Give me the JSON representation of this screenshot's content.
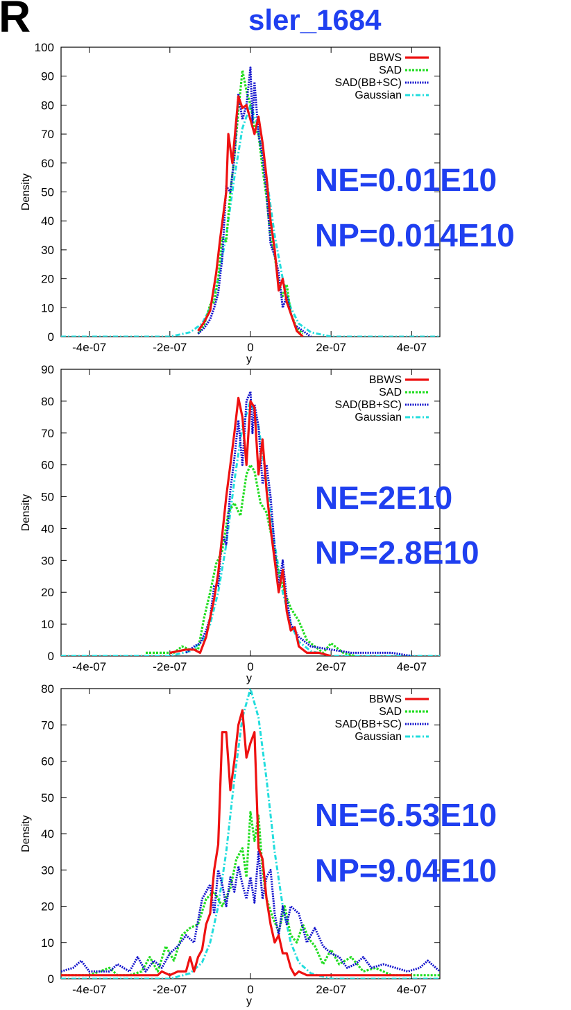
{
  "panel_letter": "R",
  "title": "sler_1684",
  "colors": {
    "BBWS": "#ee1111",
    "SAD": "#22dd22",
    "SAD(BB+SC)": "#1111cc",
    "Gaussian": "#22dddd",
    "annotation": "#1f3ff0"
  },
  "chart_data": [
    {
      "type": "line",
      "title": "",
      "xlabel": "y",
      "ylabel": "Density",
      "xlim": [
        -4.7e-07,
        4.7e-07
      ],
      "ylim": [
        0,
        100
      ],
      "xticks": [
        -4e-07,
        -2e-07,
        0,
        2e-07,
        4e-07
      ],
      "xtick_labels": [
        "-4e-07",
        "-2e-07",
        "0",
        "2e-07",
        "4e-07"
      ],
      "yticks": [
        0,
        10,
        20,
        30,
        40,
        50,
        60,
        70,
        80,
        90,
        100
      ],
      "legend": [
        "BBWS",
        "SAD",
        "SAD(BB+SC)",
        "Gaussian"
      ],
      "legend_position": "top-right",
      "annotations": [
        "NE=0.01E10",
        "NP=0.014E10"
      ],
      "series": [
        {
          "name": "BBWS",
          "x": [
            -1.3e-07,
            -1.15e-07,
            -1e-07,
            -8.5e-08,
            -7.5e-08,
            -6e-08,
            -5.5e-08,
            -4.5e-08,
            -3e-08,
            -2e-08,
            -1e-08,
            0,
            1e-08,
            2e-08,
            3e-08,
            4e-08,
            5e-08,
            6e-08,
            7e-08,
            8e-08,
            9e-08,
            1e-07,
            1.15e-07,
            1.3e-07
          ],
          "y": [
            2,
            5,
            9,
            22,
            34,
            50,
            70,
            60,
            83,
            79,
            80,
            75,
            70,
            76,
            67,
            55,
            40,
            30,
            16,
            20,
            12,
            8,
            2,
            0
          ]
        },
        {
          "name": "SAD",
          "x": [
            -1.3e-07,
            -1.15e-07,
            -1e-07,
            -9e-08,
            -8e-08,
            -7e-08,
            -6e-08,
            -5e-08,
            -4e-08,
            -3e-08,
            -2e-08,
            -1e-08,
            0,
            1e-08,
            2e-08,
            3e-08,
            4e-08,
            5e-08,
            6e-08,
            7e-08,
            8e-08,
            9e-08,
            1e-07,
            1.15e-07,
            1.3e-07
          ],
          "y": [
            1,
            4,
            11,
            12,
            20,
            34,
            33,
            50,
            62,
            78,
            92,
            85,
            80,
            72,
            70,
            58,
            48,
            34,
            28,
            18,
            14,
            18,
            8,
            3,
            1
          ]
        },
        {
          "name": "SAD(BB+SC)",
          "x": [
            -1.3e-07,
            -1.15e-07,
            -1e-07,
            -9e-08,
            -8e-08,
            -7e-08,
            -6e-08,
            -5e-08,
            -4e-08,
            -3e-08,
            -2e-08,
            -1e-08,
            0,
            5e-09,
            1e-08,
            2e-08,
            3e-08,
            4e-08,
            5e-08,
            6e-08,
            7e-08,
            8e-08,
            9e-08,
            1e-07,
            1.1e-07,
            1.3e-07,
            1.5e-07
          ],
          "y": [
            1,
            3,
            6,
            10,
            15,
            27,
            52,
            50,
            62,
            84,
            75,
            80,
            93,
            74,
            88,
            70,
            62,
            50,
            32,
            28,
            22,
            10,
            14,
            8,
            4,
            2,
            0
          ]
        },
        {
          "name": "Gaussian",
          "x": [
            -4.7e-07,
            -2e-07,
            -1.5e-07,
            -1.2e-07,
            -1e-07,
            -8e-08,
            -6e-08,
            -4e-08,
            -2e-08,
            0,
            2e-08,
            4e-08,
            6e-08,
            8e-08,
            1e-07,
            1.2e-07,
            1.5e-07,
            2e-07,
            4.7e-07
          ],
          "y": [
            0,
            0,
            1.5,
            4.5,
            10,
            20,
            35,
            55,
            72,
            80,
            72,
            55,
            35,
            20,
            10,
            4.5,
            1.5,
            0,
            0
          ]
        }
      ]
    },
    {
      "type": "line",
      "title": "",
      "xlabel": "y",
      "ylabel": "Density",
      "xlim": [
        -4.7e-07,
        4.7e-07
      ],
      "ylim": [
        0,
        90
      ],
      "xticks": [
        -4e-07,
        -2e-07,
        0,
        2e-07,
        4e-07
      ],
      "xtick_labels": [
        "-4e-07",
        "-2e-07",
        "0",
        "2e-07",
        "4e-07"
      ],
      "yticks": [
        0,
        10,
        20,
        30,
        40,
        50,
        60,
        70,
        80,
        90
      ],
      "legend": [
        "BBWS",
        "SAD",
        "SAD(BB+SC)",
        "Gaussian"
      ],
      "legend_position": "top-right",
      "annotations": [
        "NE=2E10",
        "NP=2.8E10"
      ],
      "series": [
        {
          "name": "BBWS",
          "x": [
            -2e-07,
            -1.6e-07,
            -1.4e-07,
            -1.25e-07,
            -1.1e-07,
            -1e-07,
            -9e-08,
            -8e-08,
            -7e-08,
            -6e-08,
            -5e-08,
            -4e-08,
            -3e-08,
            -2e-08,
            -1e-08,
            0,
            1e-08,
            2e-08,
            3e-08,
            4e-08,
            5e-08,
            6e-08,
            7e-08,
            8e-08,
            9e-08,
            1e-07,
            1.1e-07,
            1.2e-07,
            1.4e-07,
            1.7e-07,
            2e-07
          ],
          "y": [
            1,
            2,
            2,
            1,
            6,
            12,
            18,
            26,
            38,
            50,
            60,
            70,
            81,
            75,
            60,
            80,
            78,
            57,
            68,
            52,
            40,
            30,
            20,
            27,
            14,
            8,
            9,
            3,
            1,
            1,
            0
          ]
        },
        {
          "name": "SAD",
          "x": [
            -2.6e-07,
            -2.2e-07,
            -1.9e-07,
            -1.7e-07,
            -1.5e-07,
            -1.3e-07,
            -1.15e-07,
            -1e-07,
            -8.5e-08,
            -7e-08,
            -5.5e-08,
            -4e-08,
            -2.5e-08,
            -1e-08,
            0,
            1e-08,
            2.5e-08,
            4e-08,
            5.5e-08,
            7e-08,
            8.5e-08,
            1e-07,
            1.2e-07,
            1.4e-07,
            1.6e-07,
            1.8e-07,
            2e-07,
            2.3e-07,
            2.6e-07
          ],
          "y": [
            1,
            1,
            1,
            3,
            2,
            2,
            12,
            20,
            29,
            33,
            45,
            48,
            44,
            57,
            60,
            58,
            48,
            45,
            36,
            26,
            20,
            15,
            11,
            5,
            3,
            1,
            4,
            1,
            0
          ]
        },
        {
          "name": "SAD(BB+SC)",
          "x": [
            -1.6e-07,
            -1.4e-07,
            -1.25e-07,
            -1.1e-07,
            -1e-07,
            -9e-08,
            -8e-08,
            -7e-08,
            -6e-08,
            -5e-08,
            -4e-08,
            -3e-08,
            -2e-08,
            -1e-08,
            0,
            5e-09,
            1e-08,
            2e-08,
            3e-08,
            4e-08,
            5e-08,
            6e-08,
            7e-08,
            8e-08,
            9e-08,
            1e-07,
            1.2e-07,
            1.5e-07,
            2e-07,
            2.5e-07,
            3e-07,
            3.5e-07,
            4e-07
          ],
          "y": [
            1,
            3,
            4,
            8,
            12,
            22,
            22,
            38,
            35,
            52,
            62,
            74,
            60,
            80,
            83,
            70,
            79,
            72,
            54,
            60,
            50,
            34,
            22,
            30,
            18,
            10,
            6,
            3,
            2,
            1,
            1,
            1,
            0
          ]
        },
        {
          "name": "Gaussian",
          "x": [
            -4.7e-07,
            -2e-07,
            -1.5e-07,
            -1.2e-07,
            -1e-07,
            -8e-08,
            -6e-08,
            -4e-08,
            -2e-08,
            0,
            2e-08,
            4e-08,
            6e-08,
            8e-08,
            1e-07,
            1.2e-07,
            1.5e-07,
            2e-07,
            4.7e-07
          ],
          "y": [
            0,
            0,
            1.5,
            4.5,
            10,
            20,
            35,
            55,
            72,
            80,
            72,
            55,
            35,
            20,
            10,
            4.5,
            1.5,
            0,
            0
          ]
        }
      ]
    },
    {
      "type": "line",
      "title": "",
      "xlabel": "y",
      "ylabel": "Density",
      "xlim": [
        -4.7e-07,
        4.7e-07
      ],
      "ylim": [
        0,
        80
      ],
      "xticks": [
        -4e-07,
        -2e-07,
        0,
        2e-07,
        4e-07
      ],
      "xtick_labels": [
        "-4e-07",
        "-2e-07",
        "0",
        "2e-07",
        "4e-07"
      ],
      "yticks": [
        0,
        10,
        20,
        30,
        40,
        50,
        60,
        70,
        80
      ],
      "legend": [
        "BBWS",
        "SAD",
        "SAD(BB+SC)",
        "Gaussian"
      ],
      "legend_position": "top-right",
      "annotations": [
        "NE=6.53E10",
        "NP=9.04E10"
      ],
      "series": [
        {
          "name": "BBWS",
          "x": [
            -4.7e-07,
            -3e-07,
            -2.3e-07,
            -2.2e-07,
            -2e-07,
            -1.8e-07,
            -1.6e-07,
            -1.5e-07,
            -1.4e-07,
            -1.3e-07,
            -1.2e-07,
            -1.1e-07,
            -1e-07,
            -9e-08,
            -8e-08,
            -7e-08,
            -6e-08,
            -5e-08,
            -4e-08,
            -3e-08,
            -2e-08,
            -1e-08,
            0,
            1e-08,
            2e-08,
            3e-08,
            4e-08,
            5e-08,
            6e-08,
            7e-08,
            8e-08,
            9e-08,
            1e-07,
            1.1e-07,
            1.2e-07,
            1.4e-07,
            1.6e-07,
            2e-07,
            4e-07
          ],
          "y": [
            1,
            1,
            1,
            2,
            1,
            2,
            2,
            6,
            2,
            6,
            8,
            15,
            18,
            30,
            37,
            68,
            68,
            52,
            60,
            70,
            74,
            61,
            65,
            68,
            36,
            33,
            22,
            15,
            10,
            12,
            7,
            7,
            3,
            1,
            2,
            1,
            1,
            1,
            1
          ]
        },
        {
          "name": "SAD",
          "x": [
            -4.7e-07,
            -4e-07,
            -3.5e-07,
            -3.3e-07,
            -3e-07,
            -2.7e-07,
            -2.5e-07,
            -2.3e-07,
            -2.1e-07,
            -1.9e-07,
            -1.7e-07,
            -1.5e-07,
            -1.3e-07,
            -1.1e-07,
            -9e-08,
            -7e-08,
            -5e-08,
            -3.5e-08,
            -2e-08,
            -1e-08,
            0,
            1e-08,
            2e-08,
            3e-08,
            4e-08,
            5.5e-08,
            7e-08,
            8.5e-08,
            1e-07,
            1.15e-07,
            1.3e-07,
            1.45e-07,
            1.6e-07,
            1.8e-07,
            2e-07,
            2.2e-07,
            2.5e-07,
            2.8e-07,
            3.1e-07,
            3.5e-07,
            4e-07,
            4.7e-07
          ],
          "y": [
            1,
            1,
            3,
            1,
            1,
            2,
            6,
            2,
            9,
            5,
            12,
            14,
            15,
            22,
            24,
            20,
            25,
            33,
            36,
            28,
            46,
            38,
            45,
            30,
            22,
            17,
            13,
            20,
            12,
            10,
            15,
            11,
            9,
            4,
            8,
            4,
            6,
            2,
            3,
            1,
            1,
            1
          ]
        },
        {
          "name": "SAD(BB+SC)",
          "x": [
            -4.7e-07,
            -4.4e-07,
            -4.2e-07,
            -4e-07,
            -3.8e-07,
            -3.5e-07,
            -3.3e-07,
            -3e-07,
            -2.8e-07,
            -2.6e-07,
            -2.4e-07,
            -2.2e-07,
            -2e-07,
            -1.8e-07,
            -1.6e-07,
            -1.4e-07,
            -1.2e-07,
            -1e-07,
            -9e-08,
            -8e-08,
            -7e-08,
            -6e-08,
            -5e-08,
            -4e-08,
            -3e-08,
            -2e-08,
            -1e-08,
            0,
            1e-08,
            2e-08,
            3e-08,
            4e-08,
            5e-08,
            6e-08,
            7e-08,
            8e-08,
            9e-08,
            1e-07,
            1.2e-07,
            1.4e-07,
            1.6e-07,
            1.8e-07,
            2e-07,
            2.2e-07,
            2.4e-07,
            2.6e-07,
            2.8e-07,
            3e-07,
            3.3e-07,
            3.6e-07,
            3.9e-07,
            4.2e-07,
            4.4e-07,
            4.7e-07
          ],
          "y": [
            2,
            3,
            5,
            2,
            2,
            2,
            4,
            2,
            6,
            2,
            5,
            3,
            7,
            9,
            12,
            10,
            22,
            26,
            18,
            30,
            26,
            20,
            28,
            24,
            31,
            26,
            22,
            28,
            21,
            35,
            22,
            28,
            30,
            18,
            12,
            20,
            15,
            20,
            18,
            10,
            14,
            9,
            7,
            6,
            3,
            4,
            6,
            3,
            4,
            3,
            2,
            3,
            5,
            2
          ]
        },
        {
          "name": "Gaussian",
          "x": [
            -4.7e-07,
            -2e-07,
            -1.5e-07,
            -1.2e-07,
            -1e-07,
            -8e-08,
            -6e-08,
            -4e-08,
            -2e-08,
            0,
            2e-08,
            4e-08,
            6e-08,
            8e-08,
            1e-07,
            1.2e-07,
            1.5e-07,
            2e-07,
            4.7e-07
          ],
          "y": [
            0,
            0,
            1.5,
            4.5,
            10,
            20,
            35,
            55,
            72,
            80,
            72,
            55,
            35,
            20,
            10,
            4.5,
            1.5,
            0,
            0
          ]
        }
      ]
    }
  ]
}
